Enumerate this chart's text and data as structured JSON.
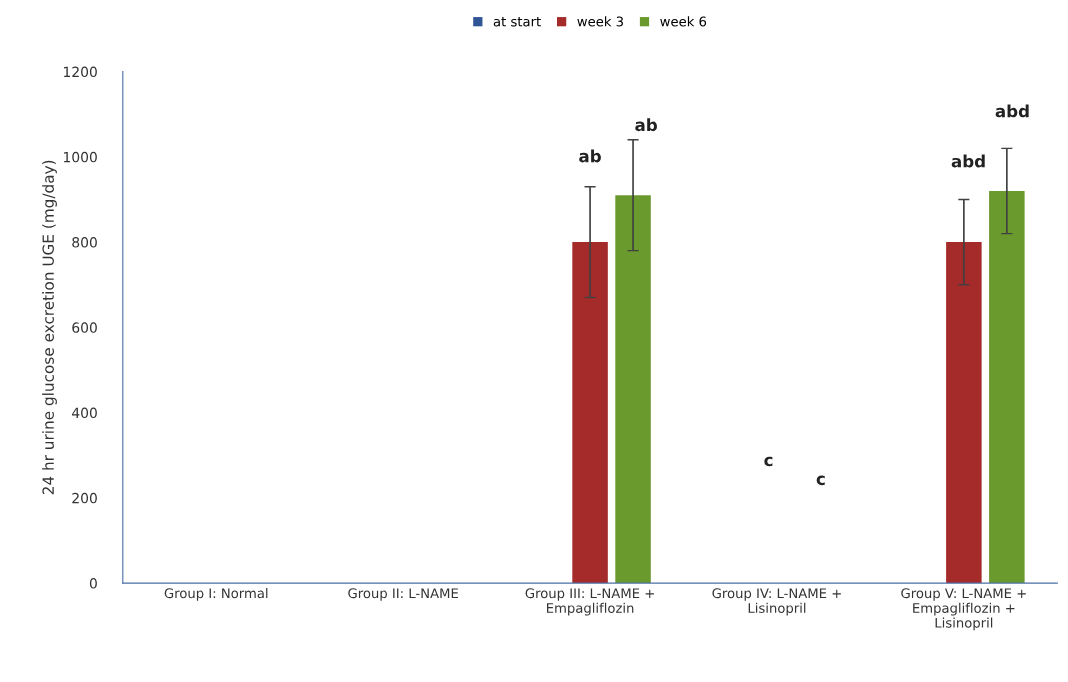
{
  "chart_data": {
    "type": "bar",
    "ylabel": "24 hr urine glucose excretion UGE (mg/day)",
    "categories": [
      "Group I: Normal",
      "Group II: L-NAME",
      "Group III: L-NAME +\nEmpagliflozin",
      "Group IV: L-NAME +\nLisinopril",
      "Group V: L-NAME +\nEmpagliflozin +\nLisinopril"
    ],
    "series": [
      {
        "name": "at start",
        "color": "#2f5597",
        "values": [
          0,
          0,
          0,
          0,
          0
        ]
      },
      {
        "name": "week 3",
        "color": "#a52a2a",
        "values": [
          0,
          0,
          800,
          0,
          800
        ],
        "errors": [
          null,
          null,
          130,
          null,
          100
        ]
      },
      {
        "name": "week 6",
        "color": "#6a9a2e",
        "values": [
          0,
          0,
          910,
          0,
          920
        ],
        "errors": [
          null,
          null,
          130,
          null,
          100
        ]
      }
    ],
    "annotations": [
      "ab",
      "ab",
      "abd",
      "abd",
      "c",
      "c"
    ],
    "ylim": [
      0,
      1200
    ],
    "yticks": [
      0,
      200,
      400,
      600,
      800,
      1000,
      1200
    ],
    "grid": false,
    "legend": "top"
  }
}
